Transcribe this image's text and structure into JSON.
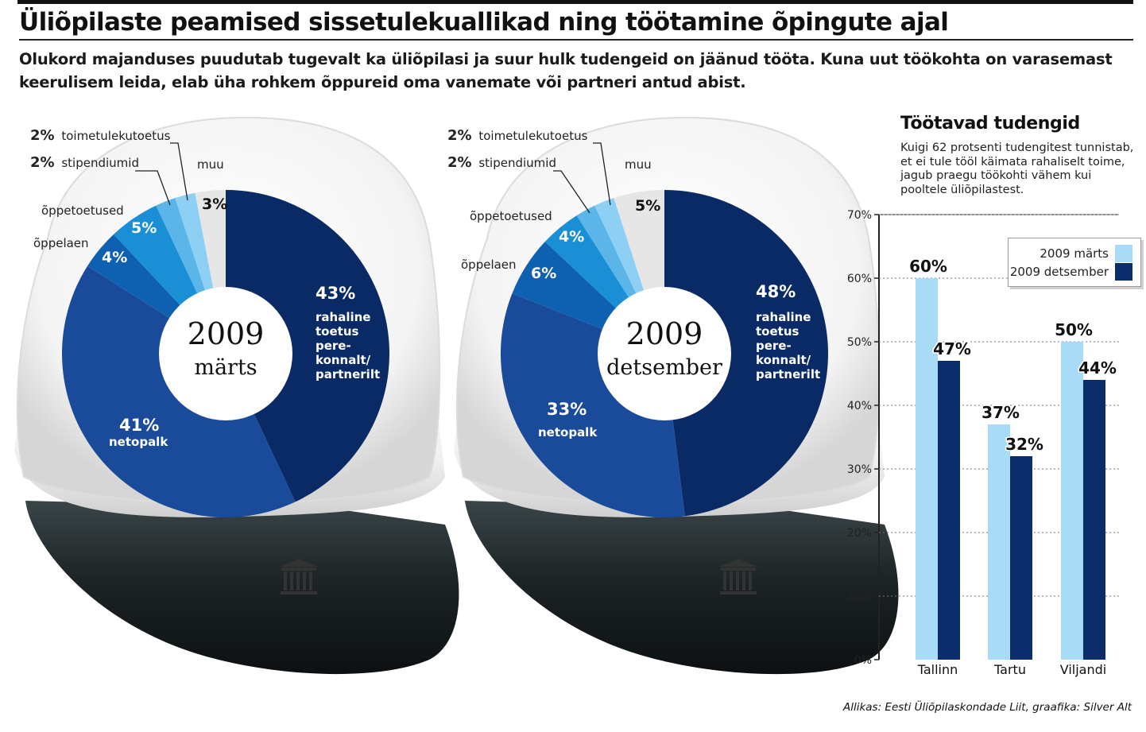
{
  "title": "Üliõpilaste peamised sissetulekuallikad ning töötamine õpingute ajal",
  "intro": "Olukord majanduses puudutab tugevalt ka üliõpilasi ja suur hulk tudengeid on jäänud tööta. Kuna uut töökohta on varasemast keerulisem leida, elab üha rohkem õppureid oma vanemate või partneri antud abist.",
  "source": "Allikas: Eesti Üliõpilaskondade Liit, graafika: Silver Alt",
  "colors": {
    "darkest": "#0a2a66",
    "dark": "#1a4a9a",
    "mid": "#0e60b0",
    "bright": "#1a8fd6",
    "light": "#5cb5e8",
    "lighter": "#8ed0f4",
    "grey": "#e6e6e6",
    "bar_march": "#a8dcf6",
    "bar_december": "#0c2d6b"
  },
  "chart_data": [
    {
      "type": "pie",
      "center_label": {
        "year": "2009",
        "month": "märts"
      },
      "slices": [
        {
          "name": "rahaline toetus pere-konnalt/partnerilt",
          "value": 43,
          "label": "43%"
        },
        {
          "name": "netopalk",
          "value": 41,
          "label": "41%"
        },
        {
          "name": "õppelaen",
          "value": 4,
          "label": "4%"
        },
        {
          "name": "õppetoetused",
          "value": 5,
          "label": "5%"
        },
        {
          "name": "stipendiumid",
          "value": 2,
          "label": "2%"
        },
        {
          "name": "toimetulekutoetus",
          "value": 2,
          "label": "2%"
        },
        {
          "name": "muu",
          "value": 3,
          "label": "3%"
        }
      ]
    },
    {
      "type": "pie",
      "center_label": {
        "year": "2009",
        "month": "detsember"
      },
      "slices": [
        {
          "name": "rahaline toetus pere-konnalt/partnerilt",
          "value": 48,
          "label": "48%"
        },
        {
          "name": "netopalk",
          "value": 33,
          "label": "33%"
        },
        {
          "name": "õppelaen",
          "value": 6,
          "label": "6%"
        },
        {
          "name": "õppetoetused",
          "value": 4,
          "label": "4%"
        },
        {
          "name": "stipendiumid",
          "value": 2,
          "label": "2%"
        },
        {
          "name": "toimetulekutoetus",
          "value": 2,
          "label": "2%"
        },
        {
          "name": "muu",
          "value": 5,
          "label": "5%"
        }
      ]
    },
    {
      "type": "bar",
      "title": "Töötavad tudengid",
      "description": "Kuigi 62 protsenti tudengitest tunnistab, et ei tule tööl käimata rahaliselt toime, jagub praegu töökohti vähem kui pooltele üliõpilastest.",
      "categories": [
        "Tallinn",
        "Tartu",
        "Viljandi"
      ],
      "series": [
        {
          "name": "2009 märts",
          "values": [
            60,
            37,
            50
          ]
        },
        {
          "name": "2009 detsember",
          "values": [
            47,
            32,
            44
          ]
        }
      ],
      "ylim": [
        0,
        70
      ],
      "yticks": [
        "0%",
        "10%",
        "20%",
        "30%",
        "40%",
        "50%",
        "60%",
        "70%"
      ],
      "legend_position": "top-right"
    }
  ]
}
